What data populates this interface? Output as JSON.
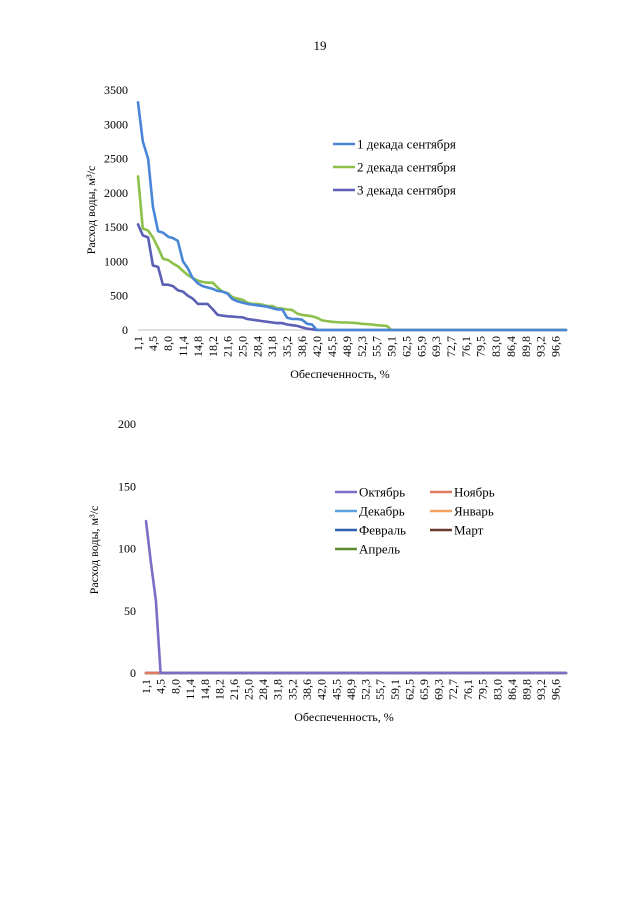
{
  "page": {
    "number": "19"
  },
  "chart_data": [
    {
      "type": "line",
      "xlabel": "Обеспеченность, %",
      "ylabel": "Расход воды, м³/с",
      "ylim": [
        0,
        3500
      ],
      "yticks": [
        "0",
        "500",
        "1000",
        "1500",
        "2000",
        "2500",
        "3000",
        "3500"
      ],
      "categories": [
        "1,1",
        "4,5",
        "8,0",
        "11,4",
        "14,8",
        "18,2",
        "21,6",
        "25,0",
        "28,4",
        "31,8",
        "35,2",
        "38,6",
        "42,0",
        "45,5",
        "48,9",
        "52,3",
        "55,7",
        "59,1",
        "62,5",
        "65,9",
        "69,3",
        "72,7",
        "76,1",
        "79,5",
        "83,0",
        "86,4",
        "89,8",
        "93,2",
        "96,6"
      ],
      "x_range": [
        1.1,
        99.0
      ],
      "legend_position": "right",
      "grid": false,
      "series": [
        {
          "name": "1 декада сентября",
          "color": "#4a86d8",
          "points": [
            [
              1.1,
              3320
            ],
            [
              2.2,
              2750
            ],
            [
              3.4,
              2500
            ],
            [
              4.5,
              1800
            ],
            [
              5.7,
              1440
            ],
            [
              6.8,
              1420
            ],
            [
              8.0,
              1360
            ],
            [
              9.1,
              1340
            ],
            [
              10.2,
              1300
            ],
            [
              11.4,
              1000
            ],
            [
              12.5,
              900
            ],
            [
              13.6,
              760
            ],
            [
              14.8,
              680
            ],
            [
              15.9,
              640
            ],
            [
              17.0,
              620
            ],
            [
              18.2,
              600
            ],
            [
              19.3,
              570
            ],
            [
              20.4,
              560
            ],
            [
              21.6,
              530
            ],
            [
              22.7,
              450
            ],
            [
              23.8,
              420
            ],
            [
              25.0,
              400
            ],
            [
              26.1,
              380
            ],
            [
              27.2,
              370
            ],
            [
              28.4,
              360
            ],
            [
              29.5,
              350
            ],
            [
              30.7,
              340
            ],
            [
              31.8,
              320
            ],
            [
              32.9,
              300
            ],
            [
              34.1,
              300
            ],
            [
              35.2,
              180
            ],
            [
              36.4,
              160
            ],
            [
              37.5,
              160
            ],
            [
              38.6,
              150
            ],
            [
              39.8,
              90
            ],
            [
              40.9,
              80
            ],
            [
              42.0,
              0
            ],
            [
              99.0,
              0
            ]
          ]
        },
        {
          "name": "2 декада сентября",
          "color": "#8cc04b",
          "points": [
            [
              1.1,
              2240
            ],
            [
              2.2,
              1480
            ],
            [
              3.4,
              1450
            ],
            [
              4.5,
              1350
            ],
            [
              5.7,
              1200
            ],
            [
              6.8,
              1040
            ],
            [
              8.0,
              1020
            ],
            [
              9.1,
              970
            ],
            [
              10.2,
              930
            ],
            [
              11.4,
              860
            ],
            [
              12.5,
              800
            ],
            [
              13.6,
              760
            ],
            [
              14.8,
              720
            ],
            [
              15.9,
              700
            ],
            [
              17.0,
              690
            ],
            [
              18.2,
              690
            ],
            [
              19.3,
              620
            ],
            [
              20.4,
              560
            ],
            [
              21.6,
              540
            ],
            [
              22.7,
              480
            ],
            [
              23.8,
              460
            ],
            [
              25.0,
              440
            ],
            [
              26.1,
              400
            ],
            [
              27.2,
              380
            ],
            [
              28.4,
              380
            ],
            [
              29.5,
              370
            ],
            [
              30.7,
              350
            ],
            [
              31.8,
              350
            ],
            [
              32.9,
              320
            ],
            [
              34.1,
              310
            ],
            [
              35.2,
              300
            ],
            [
              36.4,
              290
            ],
            [
              37.5,
              240
            ],
            [
              38.6,
              220
            ],
            [
              39.8,
              210
            ],
            [
              40.9,
              200
            ],
            [
              42.0,
              180
            ],
            [
              43.2,
              140
            ],
            [
              44.3,
              130
            ],
            [
              45.5,
              120
            ],
            [
              47.7,
              110
            ],
            [
              48.9,
              110
            ],
            [
              51.1,
              100
            ],
            [
              52.3,
              90
            ],
            [
              54.6,
              80
            ],
            [
              55.7,
              70
            ],
            [
              58.0,
              60
            ],
            [
              59.1,
              0
            ],
            [
              99.0,
              0
            ]
          ]
        },
        {
          "name": "3 декада сентября",
          "color": "#5b5fb5",
          "points": [
            [
              1.1,
              1540
            ],
            [
              2.2,
              1380
            ],
            [
              3.4,
              1350
            ],
            [
              4.5,
              940
            ],
            [
              5.7,
              920
            ],
            [
              6.8,
              660
            ],
            [
              8.0,
              660
            ],
            [
              9.1,
              640
            ],
            [
              10.2,
              580
            ],
            [
              11.4,
              560
            ],
            [
              12.5,
              500
            ],
            [
              13.6,
              460
            ],
            [
              14.8,
              380
            ],
            [
              15.9,
              380
            ],
            [
              17.0,
              380
            ],
            [
              18.2,
              300
            ],
            [
              19.3,
              220
            ],
            [
              20.4,
              210
            ],
            [
              21.6,
              200
            ],
            [
              22.7,
              195
            ],
            [
              23.8,
              190
            ],
            [
              25.0,
              185
            ],
            [
              26.1,
              160
            ],
            [
              27.2,
              150
            ],
            [
              28.4,
              140
            ],
            [
              29.5,
              130
            ],
            [
              30.7,
              120
            ],
            [
              31.8,
              110
            ],
            [
              32.9,
              100
            ],
            [
              34.1,
              100
            ],
            [
              35.2,
              80
            ],
            [
              36.4,
              70
            ],
            [
              37.5,
              60
            ],
            [
              38.6,
              40
            ],
            [
              39.8,
              20
            ],
            [
              40.9,
              10
            ],
            [
              42.0,
              0
            ],
            [
              99.0,
              0
            ]
          ]
        }
      ]
    },
    {
      "type": "line",
      "xlabel": "Обеспеченность, %",
      "ylabel": "Расход воды, м³/с",
      "ylim": [
        0,
        200
      ],
      "yticks": [
        "0",
        "50",
        "100",
        "150",
        "200"
      ],
      "categories": [
        "1,1",
        "4,5",
        "8,0",
        "11,4",
        "14,8",
        "18,2",
        "21,6",
        "25,0",
        "28,4",
        "31,8",
        "35,2",
        "38,6",
        "42,0",
        "45,5",
        "48,9",
        "52,3",
        "55,7",
        "59,1",
        "62,5",
        "65,9",
        "69,3",
        "72,7",
        "76,1",
        "79,5",
        "83,0",
        "86,4",
        "89,8",
        "93,2",
        "96,6"
      ],
      "x_range": [
        1.1,
        99.0
      ],
      "legend_position": "right",
      "grid": false,
      "series": [
        {
          "name": "Октябрь",
          "color": "#7a6fc4",
          "points": [
            [
              1.1,
              122
            ],
            [
              2.2,
              90
            ],
            [
              3.4,
              58
            ],
            [
              4.5,
              0
            ],
            [
              99.0,
              0
            ]
          ]
        },
        {
          "name": "Ноябрь",
          "color": "#e07a5f",
          "points": [
            [
              1.1,
              0
            ],
            [
              99.0,
              0
            ]
          ]
        },
        {
          "name": "Декабрь",
          "color": "#5aa3e0",
          "points": [
            [
              1.1,
              0
            ],
            [
              99.0,
              0
            ]
          ]
        },
        {
          "name": "Январь",
          "color": "#f4a261",
          "points": [
            [
              1.1,
              0
            ],
            [
              99.0,
              0
            ]
          ]
        },
        {
          "name": "Февраль",
          "color": "#2f5fb3",
          "points": [
            [
              1.1,
              0
            ],
            [
              99.0,
              0
            ]
          ]
        },
        {
          "name": "Март",
          "color": "#6b3a2e",
          "points": [
            [
              1.1,
              0
            ],
            [
              99.0,
              0
            ]
          ]
        },
        {
          "name": "Апрель",
          "color": "#5e8a2f",
          "points": [
            [
              1.1,
              0
            ],
            [
              99.0,
              0
            ]
          ]
        }
      ]
    }
  ]
}
